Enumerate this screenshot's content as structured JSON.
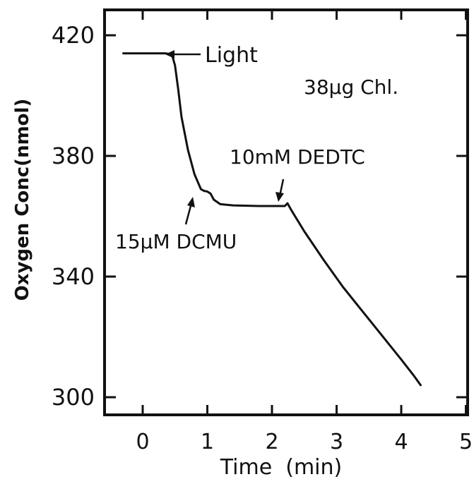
{
  "chart_data": {
    "type": "line",
    "title": "",
    "xlabel": "Time  (min)",
    "ylabel": "Oxygen Conc(nmol)",
    "xlim": [
      -0.5,
      5.1
    ],
    "ylim": [
      293,
      429
    ],
    "x_ticks": [
      0,
      1,
      2,
      3,
      4,
      5
    ],
    "y_ticks": [
      300,
      340,
      380,
      420
    ],
    "x_tick_labels": [
      "0",
      "1",
      "2",
      "3",
      "4",
      "5"
    ],
    "y_tick_labels": [
      "300",
      "340",
      "380",
      "420"
    ],
    "grid": false,
    "series": [
      {
        "name": "",
        "x": [
          -0.3,
          0.35,
          0.42,
          0.46,
          0.5,
          0.55,
          0.6,
          0.7,
          0.8,
          0.9,
          0.95,
          1.0,
          1.05,
          1.1,
          1.2,
          1.4,
          1.8,
          2.2,
          2.24,
          2.3,
          2.5,
          2.8,
          3.1,
          3.4,
          3.7,
          4.0,
          4.2,
          4.3
        ],
        "y": [
          414,
          414,
          413.8,
          413,
          410,
          402,
          393,
          382,
          374,
          369,
          368.4,
          368.2,
          367.5,
          365.5,
          364,
          363.6,
          363.4,
          363.4,
          364.3,
          362,
          355,
          345.5,
          336.5,
          328.5,
          320.5,
          312.5,
          307,
          304
        ]
      }
    ],
    "annotations": [
      {
        "text": "Light",
        "x": 0.4,
        "y": 414
      },
      {
        "text": "15µM DCMU",
        "x": 0.97,
        "y": 368
      },
      {
        "text": "10mM DEDTC",
        "x": 2.27,
        "y": 364
      },
      {
        "text": "38µg Chl.",
        "x": 3.55,
        "y": 406
      }
    ]
  }
}
